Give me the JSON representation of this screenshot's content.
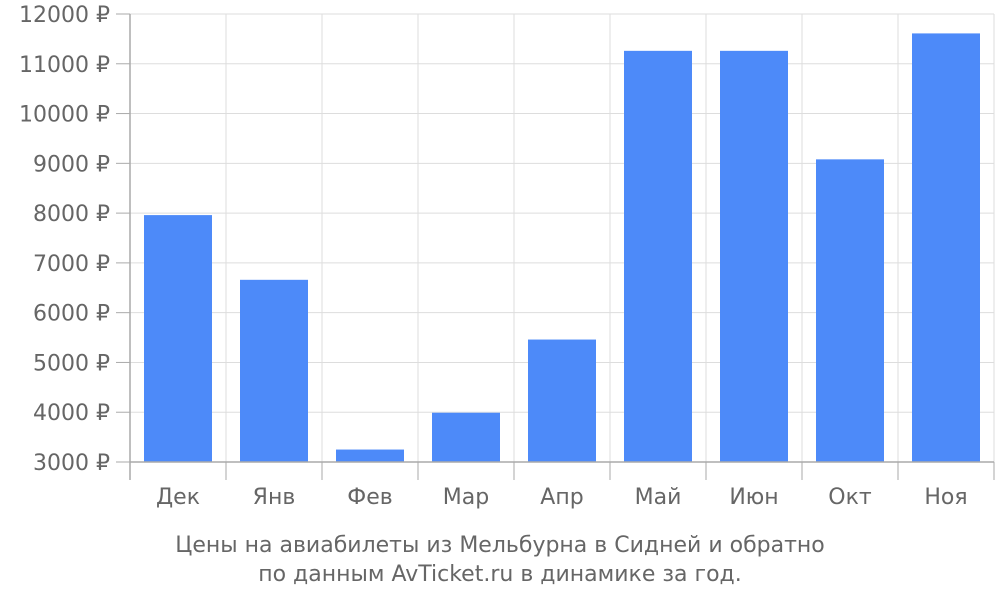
{
  "chart_data": {
    "type": "bar",
    "categories": [
      "Дек",
      "Янв",
      "Фев",
      "Мар",
      "Апр",
      "Май",
      "Июн",
      "Окт",
      "Ноя"
    ],
    "values": [
      7960,
      6660,
      3250,
      3990,
      5460,
      11260,
      11260,
      9080,
      11610
    ],
    "ylim": [
      3000,
      12000
    ],
    "yticks": [
      3000,
      4000,
      5000,
      6000,
      7000,
      8000,
      9000,
      10000,
      11000,
      12000
    ],
    "y_tick_suffix": " ₽",
    "grid": true,
    "legend": "none"
  },
  "caption": {
    "line1": "Цены на авиабилеты из Мельбурна в Сидней и обратно",
    "line2": "по данным AvTicket.ru в динамике за год."
  },
  "colors": {
    "bar": "#4d8af9",
    "grid": "#dddddd",
    "axis": "#aaaaaa",
    "text": "#666666"
  }
}
